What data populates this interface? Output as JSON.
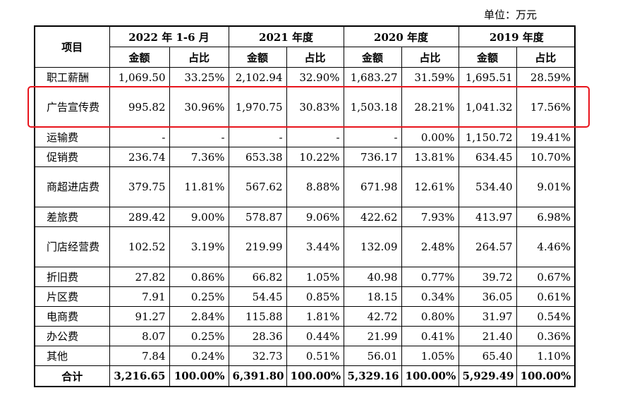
{
  "unit_label": "单位：万元",
  "header": {
    "item": "项目",
    "periods": [
      "2022 年 1-6 月",
      "2021 年度",
      "2020 年度",
      "2019 年度"
    ],
    "amount": "金额",
    "ratio": "占比"
  },
  "rows": [
    {
      "item": "职工薪酬",
      "values": [
        "1,069.50",
        "33.25%",
        "2,102.94",
        "32.90%",
        "1,683.27",
        "31.59%",
        "1,695.51",
        "28.59%"
      ]
    },
    {
      "item": "广告宣传费",
      "values": [
        "995.82",
        "30.96%",
        "1,970.75",
        "30.83%",
        "1,503.18",
        "28.21%",
        "1,041.32",
        "17.56%"
      ]
    },
    {
      "item": "运输费",
      "values": [
        "-",
        "-",
        "-",
        "-",
        "-",
        "0.00%",
        "1,150.72",
        "19.41%"
      ]
    },
    {
      "item": "促销费",
      "values": [
        "236.74",
        "7.36%",
        "653.38",
        "10.22%",
        "736.17",
        "13.81%",
        "634.45",
        "10.70%"
      ]
    },
    {
      "item": "商超进店费",
      "values": [
        "379.75",
        "11.81%",
        "567.62",
        "8.88%",
        "671.98",
        "12.61%",
        "534.40",
        "9.01%"
      ]
    },
    {
      "item": "差旅费",
      "values": [
        "289.42",
        "9.00%",
        "578.87",
        "9.06%",
        "422.62",
        "7.93%",
        "413.97",
        "6.98%"
      ]
    },
    {
      "item": "门店经营费",
      "values": [
        "102.52",
        "3.19%",
        "219.99",
        "3.44%",
        "132.09",
        "2.48%",
        "264.57",
        "4.46%"
      ]
    },
    {
      "item": "折旧费",
      "values": [
        "27.82",
        "0.86%",
        "66.82",
        "1.05%",
        "40.98",
        "0.77%",
        "39.72",
        "0.67%"
      ]
    },
    {
      "item": "片区费",
      "values": [
        "7.91",
        "0.25%",
        "54.45",
        "0.85%",
        "18.15",
        "0.34%",
        "36.05",
        "0.61%"
      ]
    },
    {
      "item": "电商费",
      "values": [
        "91.27",
        "2.84%",
        "115.88",
        "1.81%",
        "42.72",
        "0.80%",
        "31.97",
        "0.54%"
      ]
    },
    {
      "item": "办公费",
      "values": [
        "8.07",
        "0.25%",
        "28.36",
        "0.44%",
        "21.99",
        "0.41%",
        "21.40",
        "0.36%"
      ]
    },
    {
      "item": "其他",
      "values": [
        "7.84",
        "0.24%",
        "32.73",
        "0.51%",
        "56.01",
        "1.05%",
        "65.40",
        "1.10%"
      ]
    }
  ],
  "total": {
    "item": "合计",
    "values": [
      "3,216.65",
      "100.00%",
      "6,391.80",
      "100.00%",
      "5,329.16",
      "100.00%",
      "5,929.49",
      "100.00%"
    ]
  },
  "highlight_color": "#e8141c"
}
